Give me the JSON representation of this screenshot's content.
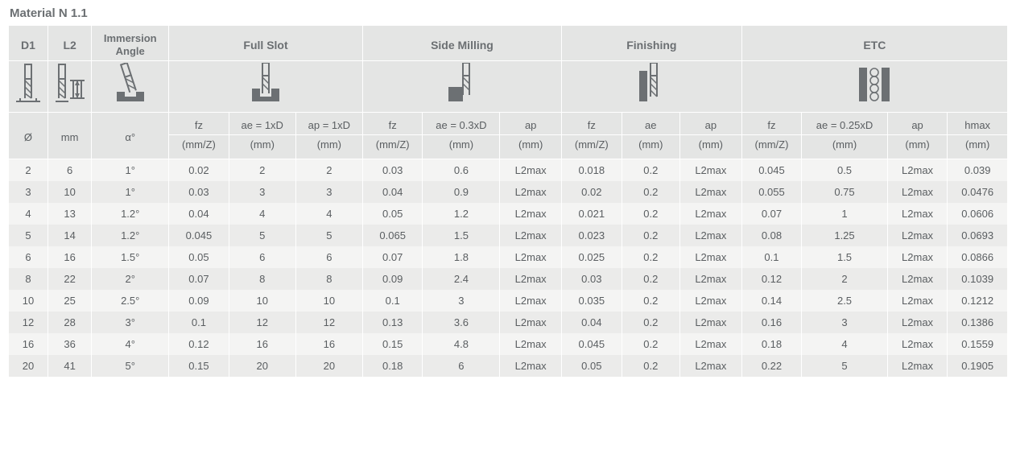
{
  "title": "Material N 1.1",
  "colors": {
    "header_bg": "#e4e5e4",
    "row_odd": "#f4f4f3",
    "row_even": "#ebebea",
    "border": "#ffffff",
    "text": "#5a5e61",
    "icon": "#6c7073"
  },
  "header": {
    "d1": "D1",
    "l2": "L2",
    "immersion": "Immersion Angle",
    "groups": {
      "full_slot": "Full Slot",
      "side_milling": "Side Milling",
      "finishing": "Finishing",
      "etc": "ETC"
    },
    "sub": {
      "diam": "Ø",
      "mm": "mm",
      "alpha": "α°",
      "fz": "fz",
      "fz_unit": "(mm/Z)",
      "ae_1xd": "ae = 1xD",
      "ap_1xd": "ap = 1xD",
      "ae_03xd": "ae = 0.3xD",
      "ae_025xd": "ae = 0.25xD",
      "ae": "ae",
      "ap": "ap",
      "hmax": "hmax",
      "mm_unit": "(mm)"
    }
  },
  "rows": [
    {
      "d1": "2",
      "l2": "6",
      "ang": "1°",
      "fs_fz": "0.02",
      "fs_ae": "2",
      "fs_ap": "2",
      "sm_fz": "0.03",
      "sm_ae": "0.6",
      "sm_ap": "L2max",
      "fn_fz": "0.018",
      "fn_ae": "0.2",
      "fn_ap": "L2max",
      "e_fz": "0.045",
      "e_ae": "0.5",
      "e_ap": "L2max",
      "e_h": "0.039"
    },
    {
      "d1": "3",
      "l2": "10",
      "ang": "1°",
      "fs_fz": "0.03",
      "fs_ae": "3",
      "fs_ap": "3",
      "sm_fz": "0.04",
      "sm_ae": "0.9",
      "sm_ap": "L2max",
      "fn_fz": "0.02",
      "fn_ae": "0.2",
      "fn_ap": "L2max",
      "e_fz": "0.055",
      "e_ae": "0.75",
      "e_ap": "L2max",
      "e_h": "0.0476"
    },
    {
      "d1": "4",
      "l2": "13",
      "ang": "1.2°",
      "fs_fz": "0.04",
      "fs_ae": "4",
      "fs_ap": "4",
      "sm_fz": "0.05",
      "sm_ae": "1.2",
      "sm_ap": "L2max",
      "fn_fz": "0.021",
      "fn_ae": "0.2",
      "fn_ap": "L2max",
      "e_fz": "0.07",
      "e_ae": "1",
      "e_ap": "L2max",
      "e_h": "0.0606"
    },
    {
      "d1": "5",
      "l2": "14",
      "ang": "1.2°",
      "fs_fz": "0.045",
      "fs_ae": "5",
      "fs_ap": "5",
      "sm_fz": "0.065",
      "sm_ae": "1.5",
      "sm_ap": "L2max",
      "fn_fz": "0.023",
      "fn_ae": "0.2",
      "fn_ap": "L2max",
      "e_fz": "0.08",
      "e_ae": "1.25",
      "e_ap": "L2max",
      "e_h": "0.0693"
    },
    {
      "d1": "6",
      "l2": "16",
      "ang": "1.5°",
      "fs_fz": "0.05",
      "fs_ae": "6",
      "fs_ap": "6",
      "sm_fz": "0.07",
      "sm_ae": "1.8",
      "sm_ap": "L2max",
      "fn_fz": "0.025",
      "fn_ae": "0.2",
      "fn_ap": "L2max",
      "e_fz": "0.1",
      "e_ae": "1.5",
      "e_ap": "L2max",
      "e_h": "0.0866"
    },
    {
      "d1": "8",
      "l2": "22",
      "ang": "2°",
      "fs_fz": "0.07",
      "fs_ae": "8",
      "fs_ap": "8",
      "sm_fz": "0.09",
      "sm_ae": "2.4",
      "sm_ap": "L2max",
      "fn_fz": "0.03",
      "fn_ae": "0.2",
      "fn_ap": "L2max",
      "e_fz": "0.12",
      "e_ae": "2",
      "e_ap": "L2max",
      "e_h": "0.1039"
    },
    {
      "d1": "10",
      "l2": "25",
      "ang": "2.5°",
      "fs_fz": "0.09",
      "fs_ae": "10",
      "fs_ap": "10",
      "sm_fz": "0.1",
      "sm_ae": "3",
      "sm_ap": "L2max",
      "fn_fz": "0.035",
      "fn_ae": "0.2",
      "fn_ap": "L2max",
      "e_fz": "0.14",
      "e_ae": "2.5",
      "e_ap": "L2max",
      "e_h": "0.1212"
    },
    {
      "d1": "12",
      "l2": "28",
      "ang": "3°",
      "fs_fz": "0.1",
      "fs_ae": "12",
      "fs_ap": "12",
      "sm_fz": "0.13",
      "sm_ae": "3.6",
      "sm_ap": "L2max",
      "fn_fz": "0.04",
      "fn_ae": "0.2",
      "fn_ap": "L2max",
      "e_fz": "0.16",
      "e_ae": "3",
      "e_ap": "L2max",
      "e_h": "0.1386"
    },
    {
      "d1": "16",
      "l2": "36",
      "ang": "4°",
      "fs_fz": "0.12",
      "fs_ae": "16",
      "fs_ap": "16",
      "sm_fz": "0.15",
      "sm_ae": "4.8",
      "sm_ap": "L2max",
      "fn_fz": "0.045",
      "fn_ae": "0.2",
      "fn_ap": "L2max",
      "e_fz": "0.18",
      "e_ae": "4",
      "e_ap": "L2max",
      "e_h": "0.1559"
    },
    {
      "d1": "20",
      "l2": "41",
      "ang": "5°",
      "fs_fz": "0.15",
      "fs_ae": "20",
      "fs_ap": "20",
      "sm_fz": "0.18",
      "sm_ae": "6",
      "sm_ap": "L2max",
      "fn_fz": "0.05",
      "fn_ae": "0.2",
      "fn_ap": "L2max",
      "e_fz": "0.22",
      "e_ae": "5",
      "e_ap": "L2max",
      "e_h": "0.1905"
    }
  ]
}
